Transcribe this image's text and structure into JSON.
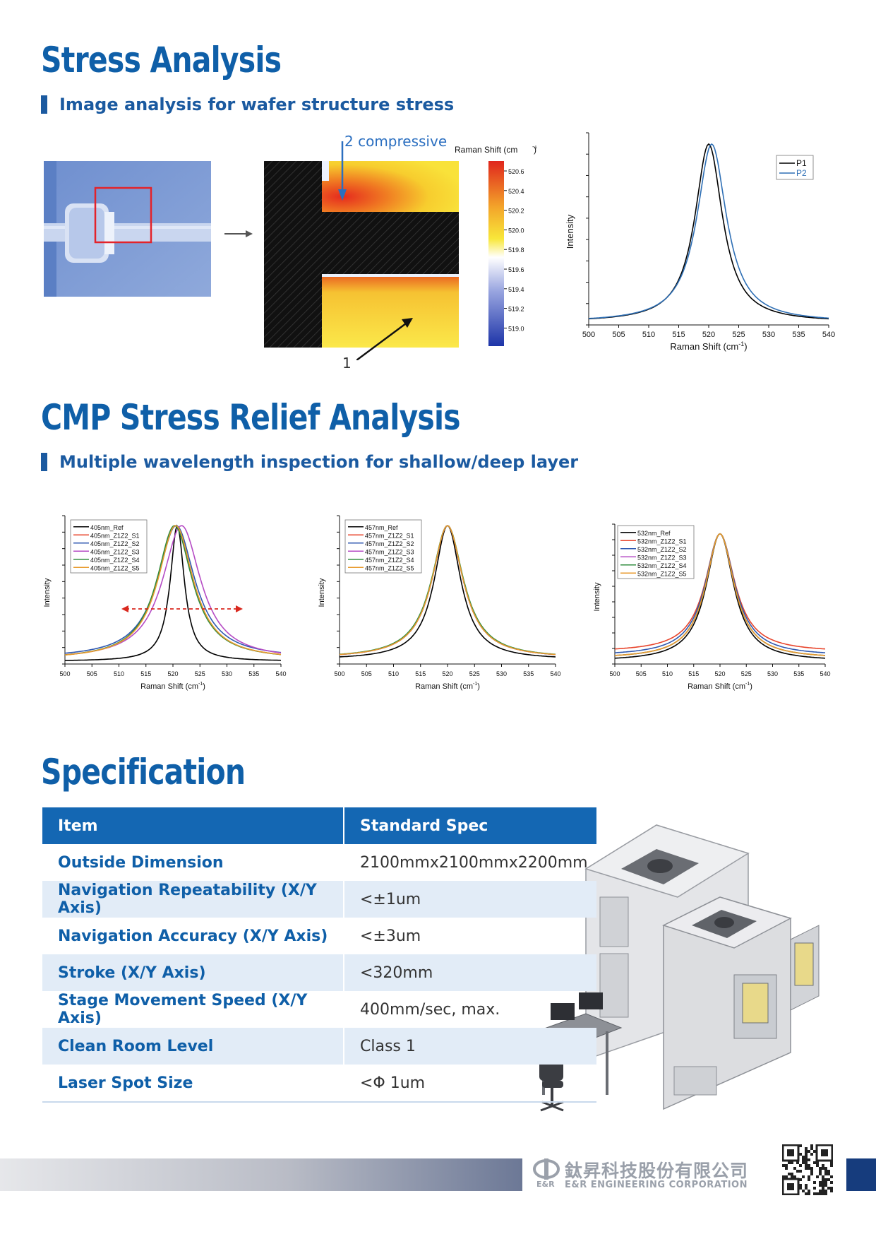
{
  "stress": {
    "title": "Stress Analysis",
    "subtitle": "Image analysis for wafer structure stress",
    "annotation_compressive": "2 compressive",
    "annotation_1": "1",
    "colorbar_title": "Raman Shift (cm",
    "colorbar_ticks": [
      "520.6",
      "520.4",
      "520.2",
      "520.0",
      "519.8",
      "519.6",
      "519.4",
      "519.2",
      "519.0"
    ]
  },
  "cmp": {
    "title": "CMP Stress Relief Analysis",
    "subtitle": "Multiple wavelength inspection for shallow/deep layer"
  },
  "chart_data": [
    {
      "type": "line",
      "xlabel": "Raman Shift (cm-1)",
      "ylabel": "Intensity",
      "xlim": [
        500,
        540
      ],
      "x_ticks": [
        500,
        505,
        510,
        515,
        520,
        525,
        530,
        535,
        540
      ],
      "legend_position": "top-right",
      "series": [
        {
          "name": "P1",
          "center": 520.0,
          "hwhm": 2.8,
          "baseline": 0.015,
          "color": "#000000"
        },
        {
          "name": "P2",
          "center": 520.5,
          "hwhm": 3.0,
          "baseline": 0.015,
          "color": "#2e6fb5"
        }
      ]
    },
    {
      "type": "line",
      "xlabel": "Raman Shift (cm-1)",
      "ylabel": "Intensity",
      "xlim": [
        500,
        540
      ],
      "x_ticks": [
        500,
        505,
        510,
        515,
        520,
        525,
        530,
        535,
        540
      ],
      "legend_position": "top-left",
      "series": [
        {
          "name": "405nm_Ref",
          "center": 520.8,
          "hwhm": 1.6,
          "baseline": 0.02,
          "color": "#000000"
        },
        {
          "name": "405nm_Z1Z2_S1",
          "center": 520.4,
          "hwhm": 4.0,
          "baseline": 0.03,
          "color": "#e8452c"
        },
        {
          "name": "405nm_Z1Z2_S2",
          "center": 520.6,
          "hwhm": 4.2,
          "baseline": 0.04,
          "color": "#2f58b0"
        },
        {
          "name": "405nm_Z1Z2_S3",
          "center": 521.6,
          "hwhm": 4.3,
          "baseline": 0.03,
          "color": "#b54bc4"
        },
        {
          "name": "405nm_Z1Z2_S4",
          "center": 520.3,
          "hwhm": 4.0,
          "baseline": 0.03,
          "color": "#2e8b3c"
        },
        {
          "name": "405nm_Z1Z2_S5",
          "center": 520.5,
          "hwhm": 4.0,
          "baseline": 0.03,
          "color": "#e89a2c"
        }
      ]
    },
    {
      "type": "line",
      "xlabel": "Raman Shift (cm-1)",
      "ylabel": "Intensity",
      "xlim": [
        500,
        540
      ],
      "x_ticks": [
        500,
        505,
        510,
        515,
        520,
        525,
        530,
        535,
        540
      ],
      "legend_position": "top-left",
      "series": [
        {
          "name": "457nm_Ref",
          "center": 520.0,
          "hwhm": 3.0,
          "baseline": 0.03,
          "color": "#000000"
        },
        {
          "name": "457nm_Z1Z2_S1",
          "center": 520.0,
          "hwhm": 3.5,
          "baseline": 0.04,
          "color": "#e8452c"
        },
        {
          "name": "457nm_Z1Z2_S2",
          "center": 520.0,
          "hwhm": 3.5,
          "baseline": 0.04,
          "color": "#2f58b0"
        },
        {
          "name": "457nm_Z1Z2_S3",
          "center": 520.0,
          "hwhm": 3.5,
          "baseline": 0.04,
          "color": "#b54bc4"
        },
        {
          "name": "457nm_Z1Z2_S4",
          "center": 520.0,
          "hwhm": 3.6,
          "baseline": 0.04,
          "color": "#2e8b3c"
        },
        {
          "name": "457nm_Z1Z2_S5",
          "center": 520.0,
          "hwhm": 3.5,
          "baseline": 0.04,
          "color": "#e89a2c"
        }
      ]
    },
    {
      "type": "line",
      "xlabel": "Raman Shift (cm-1)",
      "ylabel": "Intensity",
      "xlim": [
        500,
        540
      ],
      "x_ticks": [
        500,
        505,
        510,
        515,
        520,
        525,
        530,
        535,
        540
      ],
      "legend_position": "top-left",
      "series": [
        {
          "name": "532nm_Ref",
          "center": 520.0,
          "hwhm": 3.2,
          "baseline": 0.02,
          "color": "#000000"
        },
        {
          "name": "532nm_Z1Z2_S1",
          "center": 520.0,
          "hwhm": 3.4,
          "baseline": 0.09,
          "color": "#e8452c"
        },
        {
          "name": "532nm_Z1Z2_S2",
          "center": 520.0,
          "hwhm": 3.4,
          "baseline": 0.06,
          "color": "#2f58b0"
        },
        {
          "name": "532nm_Z1Z2_S3",
          "center": 520.0,
          "hwhm": 3.3,
          "baseline": 0.04,
          "color": "#b54bc4"
        },
        {
          "name": "532nm_Z1Z2_S4",
          "center": 520.0,
          "hwhm": 3.3,
          "baseline": 0.04,
          "color": "#2e8b3c"
        },
        {
          "name": "532nm_Z1Z2_S5",
          "center": 520.0,
          "hwhm": 3.3,
          "baseline": 0.04,
          "color": "#e89a2c"
        }
      ]
    }
  ],
  "spec": {
    "title": "Specification",
    "headers": [
      "Item",
      "Standard Spec"
    ],
    "rows": [
      {
        "item": "Outside Dimension",
        "value": "2100mmx2100mmx2200mm"
      },
      {
        "item": "Navigation Repeatability (X/Y Axis)",
        "value": "<±1um"
      },
      {
        "item": "Navigation Accuracy (X/Y Axis)",
        "value": "<±3um"
      },
      {
        "item": "Stroke (X/Y Axis)",
        "value": "<320mm"
      },
      {
        "item": "Stage Movement Speed (X/Y Axis)",
        "value": "400mm/sec, max."
      },
      {
        "item": "Clean Room Level",
        "value": "Class 1"
      },
      {
        "item": "Laser Spot Size",
        "value": "<Φ 1um"
      }
    ]
  },
  "footer": {
    "company_cn": "鈦昇科技股份有限公司",
    "company_en": "E&R ENGINEERING CORPORATION",
    "logo_text": "E&R"
  }
}
